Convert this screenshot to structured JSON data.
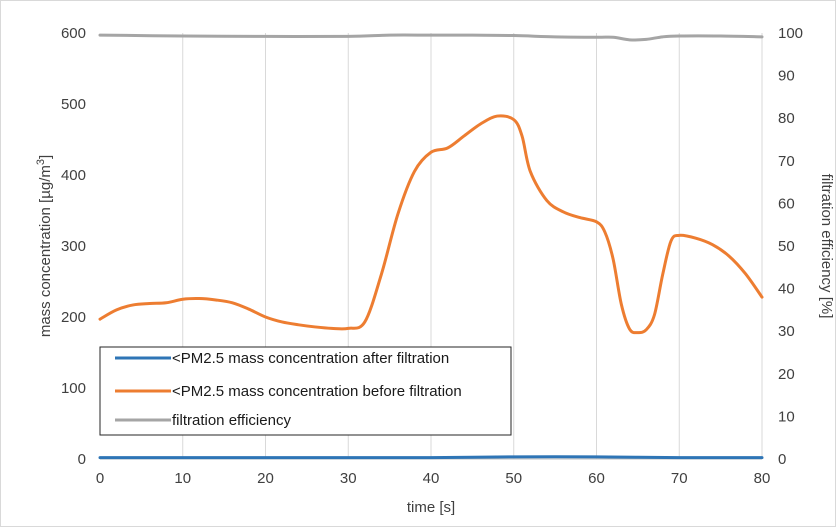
{
  "chart_data": {
    "type": "line",
    "title": "",
    "xlabel": "time [s]",
    "ylabel_left": {
      "text": "mass concentration [µg/m",
      "superscript": "3",
      "suffix": "]"
    },
    "ylabel_right": "filtration efficiency [%]",
    "xlim": [
      0,
      80
    ],
    "ylim_left": [
      0,
      600
    ],
    "ylim_right": [
      0,
      100
    ],
    "x_ticks": [
      0,
      10,
      20,
      30,
      40,
      50,
      60,
      70,
      80
    ],
    "y_ticks_left": [
      0,
      100,
      200,
      300,
      400,
      500,
      600
    ],
    "y_ticks_right": [
      0,
      10,
      20,
      30,
      40,
      50,
      60,
      70,
      80,
      90,
      100
    ],
    "grid": {
      "vertical": true,
      "horizontal": false
    },
    "legend_position": "bottom-left",
    "series": [
      {
        "name": "<PM2.5 mass concentration after filtration",
        "axis": "left",
        "color": "#2E75B6",
        "x": [
          0,
          10,
          20,
          30,
          40,
          50,
          60,
          70,
          80
        ],
        "y": [
          2,
          2,
          2,
          2,
          2,
          3,
          3,
          2,
          2
        ]
      },
      {
        "name": "<PM2.5 mass concentration before filtration",
        "axis": "left",
        "color": "#ED7D31",
        "x": [
          0,
          2,
          4,
          6,
          8,
          10,
          12,
          14,
          16,
          18,
          20,
          22,
          24,
          26,
          28,
          30,
          32,
          34,
          36,
          38,
          40,
          42,
          44,
          46,
          48,
          50,
          51,
          52,
          54,
          56,
          58,
          60,
          61,
          62,
          63,
          64,
          65,
          66,
          67,
          68,
          69,
          70,
          72,
          74,
          76,
          78,
          80
        ],
        "y": [
          197,
          210,
          217,
          219,
          220,
          225,
          226,
          224,
          220,
          211,
          200,
          193,
          189,
          186,
          184,
          184,
          193,
          260,
          345,
          405,
          432,
          438,
          455,
          472,
          483,
          478,
          455,
          405,
          364,
          348,
          340,
          334,
          320,
          282,
          218,
          183,
          178,
          182,
          203,
          260,
          307,
          315,
          311,
          302,
          286,
          261,
          228
        ]
      },
      {
        "name": "filtration efficiency",
        "axis": "right",
        "color": "#A5A5A5",
        "x": [
          0,
          10,
          20,
          30,
          35,
          40,
          45,
          50,
          55,
          60,
          62,
          64,
          66,
          68,
          70,
          75,
          80
        ],
        "y": [
          99.5,
          99.3,
          99.2,
          99.2,
          99.5,
          99.5,
          99.5,
          99.4,
          99.1,
          99.0,
          99.0,
          98.4,
          98.5,
          99.1,
          99.3,
          99.3,
          99.1
        ]
      }
    ]
  }
}
